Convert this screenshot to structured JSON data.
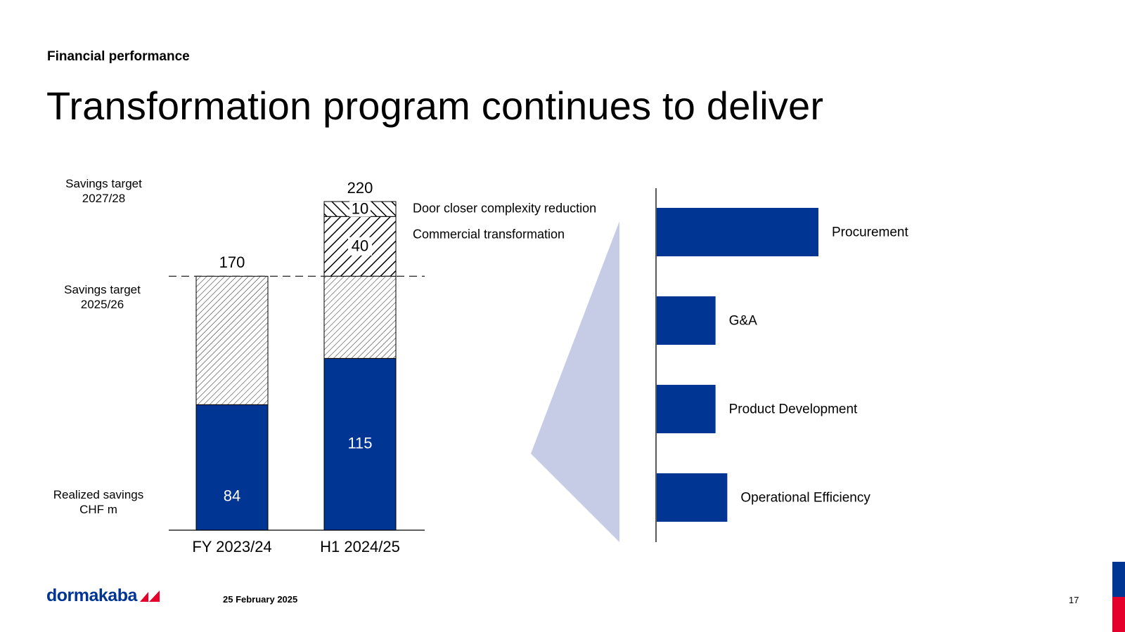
{
  "header": {
    "kicker": "Financial performance",
    "title": "Transformation program continues to deliver"
  },
  "row_labels": {
    "target_2728": [
      "Savings target",
      "2027/28"
    ],
    "target_2526": [
      "Savings target",
      "2025/26"
    ],
    "realized": [
      "Realized savings",
      "CHF m"
    ]
  },
  "colors": {
    "primary": "#003594",
    "funnel": "#c6cbe6",
    "brand_red": "#e4002b"
  },
  "chart_data": [
    {
      "type": "bar",
      "stacked": true,
      "categories": [
        "FY 2023/24",
        "H1 2024/25"
      ],
      "series": [
        {
          "name": "Realized savings",
          "values": [
            84,
            115
          ]
        },
        {
          "name": "Savings target 2025/26",
          "values": [
            86,
            55
          ]
        },
        {
          "name": "Commercial transformation",
          "values": [
            0,
            40
          ]
        },
        {
          "name": "Door closer complexity reduction",
          "values": [
            0,
            10
          ]
        }
      ],
      "totals": [
        170,
        220
      ],
      "reference_line": {
        "value": 170
      },
      "ylim": [
        0,
        220
      ]
    },
    {
      "type": "bar",
      "orientation": "horizontal",
      "categories": [
        "Procurement",
        "G&A",
        "Product Development",
        "Operational Efficiency"
      ],
      "values": [
        55,
        20,
        20,
        24
      ],
      "axis_labels": false
    }
  ],
  "footer": {
    "brand": "dormakaba",
    "date": "25 February 2025",
    "page": "17"
  }
}
